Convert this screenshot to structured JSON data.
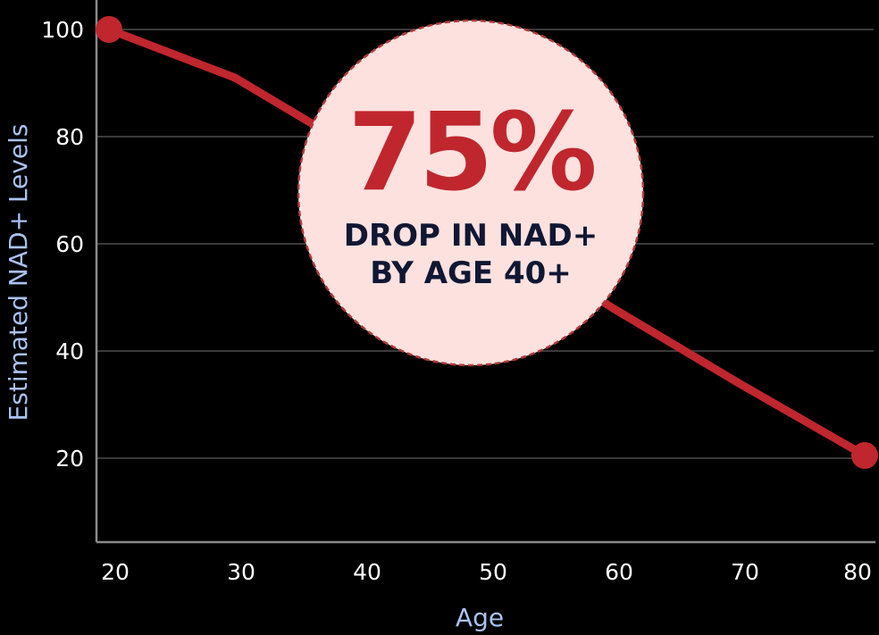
{
  "chart_data": {
    "type": "line",
    "x": [
      20,
      30,
      40,
      50,
      60,
      70,
      80
    ],
    "series": [
      {
        "values": [
          100,
          91,
          77,
          63,
          48,
          34,
          20.5
        ]
      }
    ],
    "xlabel": "Age",
    "ylabel": "Estimated NAD+ Levels",
    "xticks": [
      "20",
      "30",
      "40",
      "50",
      "60",
      "70",
      "80"
    ],
    "yticks": [
      "20",
      "40",
      "60",
      "80",
      "100"
    ],
    "ylim": [
      5,
      105
    ],
    "xlim": [
      20,
      80
    ],
    "grid": true,
    "annotation": {
      "value": "75%",
      "line1": "DROP IN NAD+",
      "line2": "BY AGE 40+"
    }
  },
  "colors": {
    "background": "#000000",
    "line": "#c0262d",
    "grid": "#3a3a3a",
    "axis": "#8a8a8a",
    "tick_text": "#ffffff",
    "axis_title": "#a9c1f0",
    "callout_fill": "#fde1df",
    "callout_border": "#b23a3a",
    "callout_value": "#c0262d",
    "callout_text": "#0f1733"
  }
}
